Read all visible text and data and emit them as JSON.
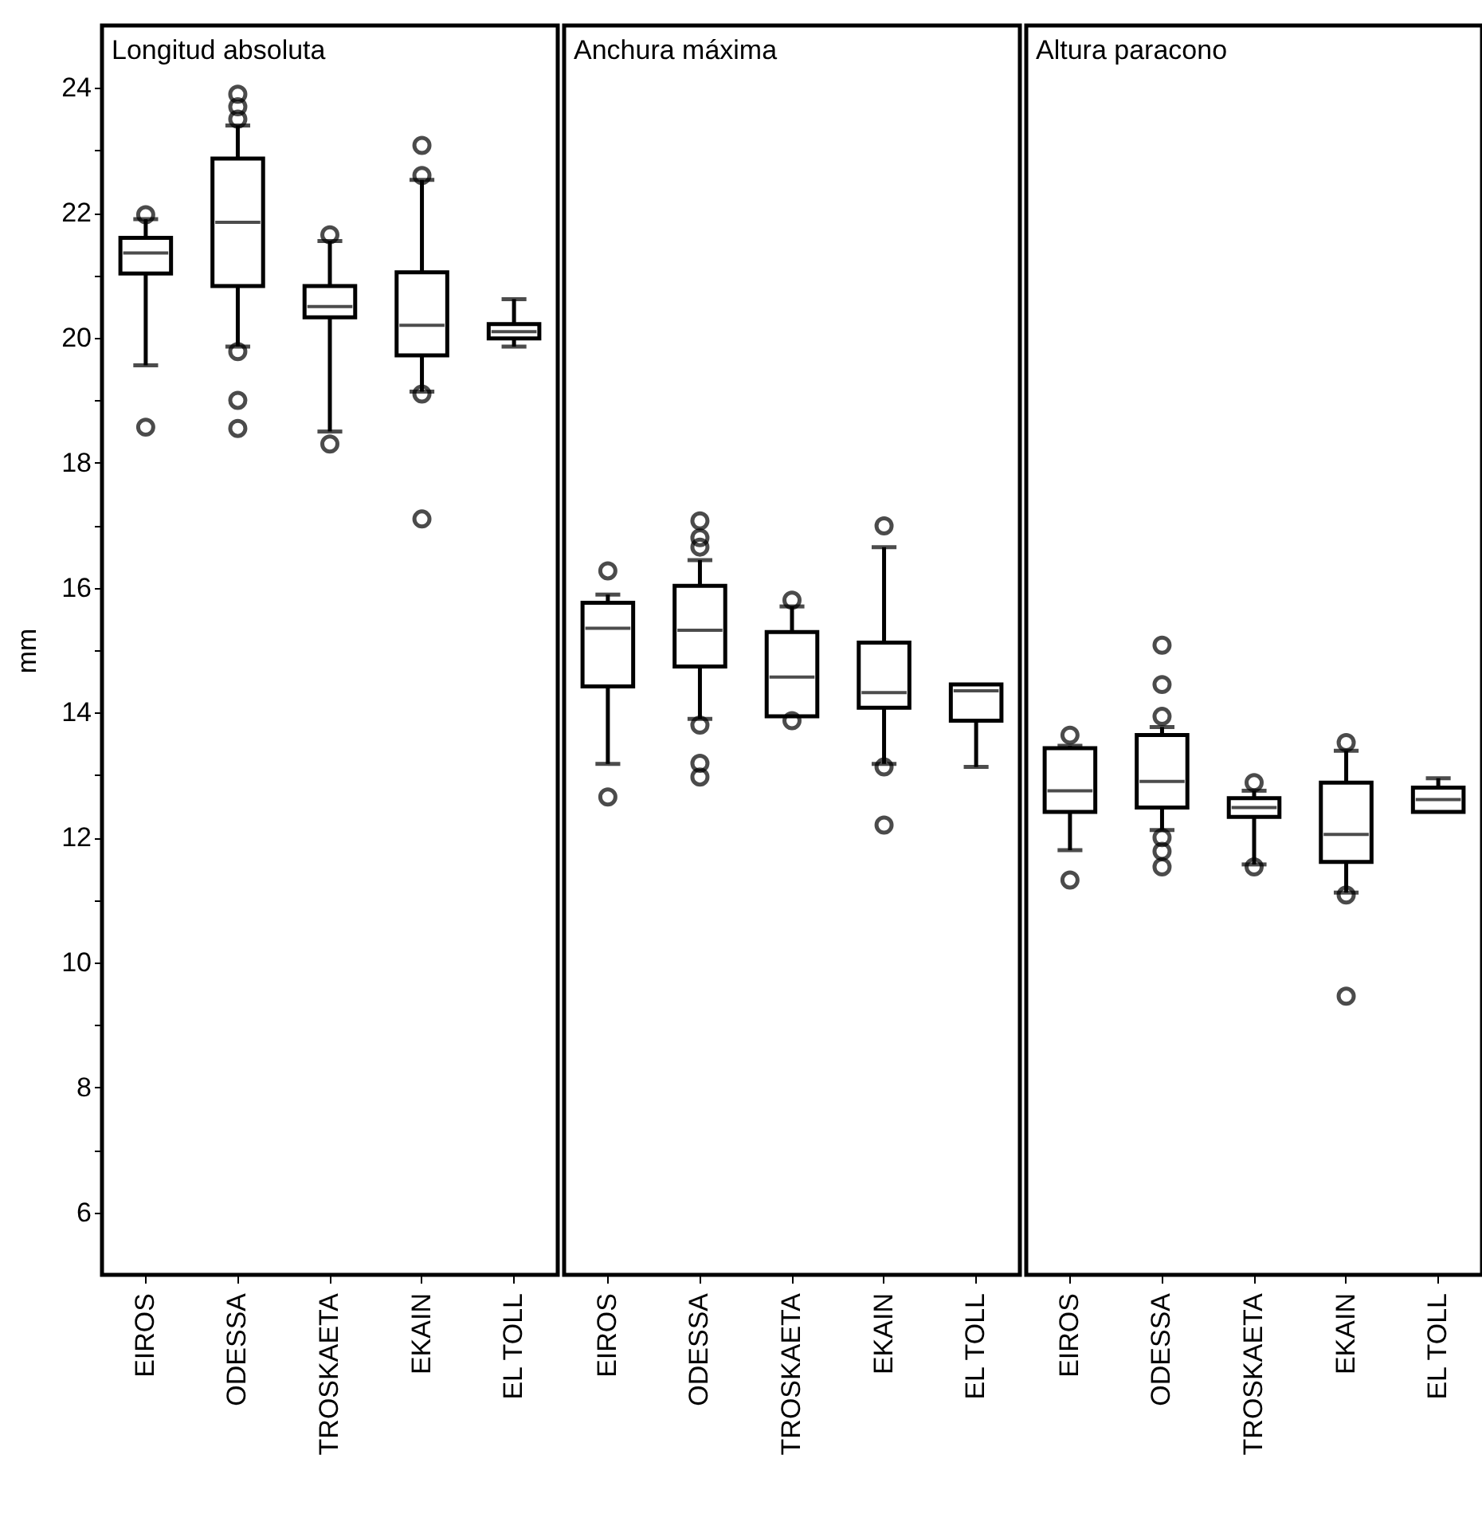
{
  "chart_data": [
    {
      "type": "box",
      "title": "Longitud absoluta",
      "ylabel": "mm",
      "categories": [
        "EIROS",
        "ODESSA",
        "TROSKAETA",
        "EKAIN",
        "EL TOLL"
      ],
      "boxes": [
        {
          "low": 19.56,
          "q1": 21.03,
          "median": 21.36,
          "q3": 21.6,
          "high": 21.9,
          "outliers": [
            21.97,
            18.57
          ]
        },
        {
          "low": 19.86,
          "q1": 20.83,
          "median": 21.85,
          "q3": 22.87,
          "high": 23.4,
          "outliers": [
            23.9,
            23.7,
            23.5,
            19.78,
            19.0,
            18.55
          ]
        },
        {
          "low": 18.5,
          "q1": 20.33,
          "median": 20.5,
          "q3": 20.83,
          "high": 21.55,
          "outliers": [
            21.65,
            18.3
          ]
        },
        {
          "low": 19.14,
          "q1": 19.72,
          "median": 20.2,
          "q3": 21.05,
          "high": 22.53,
          "outliers": [
            23.08,
            22.6,
            19.1,
            17.1
          ]
        },
        {
          "low": 19.86,
          "q1": 19.99,
          "median": 20.1,
          "q3": 20.22,
          "high": 20.62
        }
      ],
      "ylim": [
        5,
        25
      ],
      "yticks": [
        6,
        {
          "value": 7,
          "label": null
        },
        8,
        {
          "value": 9,
          "label": null
        },
        10,
        {
          "value": 11,
          "label": null
        },
        12,
        {
          "value": 13,
          "label": null
        },
        14,
        {
          "value": 15,
          "label": null
        },
        16,
        {
          "value": 17,
          "label": null
        },
        18,
        {
          "value": 19,
          "label": null
        },
        20,
        {
          "value": 21,
          "label": null
        },
        22,
        {
          "value": 23,
          "label": null
        },
        24
      ]
    },
    {
      "type": "box",
      "title": "Anchura máxima",
      "categories": [
        "EIROS",
        "ODESSA",
        "TROSKAETA",
        "EKAIN",
        "EL TOLL"
      ],
      "boxes": [
        {
          "low": 13.18,
          "q1": 14.42,
          "median": 15.35,
          "q3": 15.76,
          "high": 15.89,
          "outliers": [
            16.27,
            12.65
          ]
        },
        {
          "low": 13.9,
          "q1": 14.74,
          "median": 15.32,
          "q3": 16.03,
          "high": 16.44,
          "outliers": [
            17.07,
            16.8,
            16.65,
            13.8,
            13.19,
            12.97
          ]
        },
        {
          "low": 13.94,
          "q1": 13.94,
          "median": 14.57,
          "q3": 15.29,
          "high": 15.7,
          "outliers": [
            15.8,
            13.87
          ]
        },
        {
          "low": 13.18,
          "q1": 14.08,
          "median": 14.32,
          "q3": 15.12,
          "high": 16.65,
          "outliers": [
            16.99,
            13.13,
            12.2
          ]
        },
        {
          "low": 13.13,
          "q1": 13.87,
          "median": 14.35,
          "q3": 14.45,
          "high": 14.45
        }
      ],
      "ylim": [
        5,
        25
      ],
      "tick_labels": "x"
    },
    {
      "type": "box",
      "title": "Altura paracono",
      "categories": [
        "EIROS",
        "ODESSA",
        "TROSKAETA",
        "EKAIN",
        "EL TOLL"
      ],
      "boxes": [
        {
          "low": 11.8,
          "q1": 12.41,
          "median": 12.75,
          "q3": 13.43,
          "high": 13.47,
          "outliers": [
            13.64,
            11.32
          ]
        },
        {
          "low": 12.12,
          "q1": 12.48,
          "median": 12.9,
          "q3": 13.64,
          "high": 13.77,
          "outliers": [
            15.08,
            14.45,
            13.94,
            12.0,
            11.78,
            11.53
          ]
        },
        {
          "low": 11.57,
          "q1": 12.33,
          "median": 12.48,
          "q3": 12.63,
          "high": 12.75,
          "outliers": [
            12.88,
            11.53
          ]
        },
        {
          "low": 11.12,
          "q1": 11.61,
          "median": 12.05,
          "q3": 12.88,
          "high": 13.39,
          "outliers": [
            13.52,
            11.08,
            9.46
          ]
        },
        {
          "low": 12.41,
          "q1": 12.41,
          "median": 12.61,
          "q3": 12.8,
          "high": 12.95
        }
      ],
      "ylim": [
        5,
        25
      ],
      "tick_labels": "x"
    }
  ]
}
